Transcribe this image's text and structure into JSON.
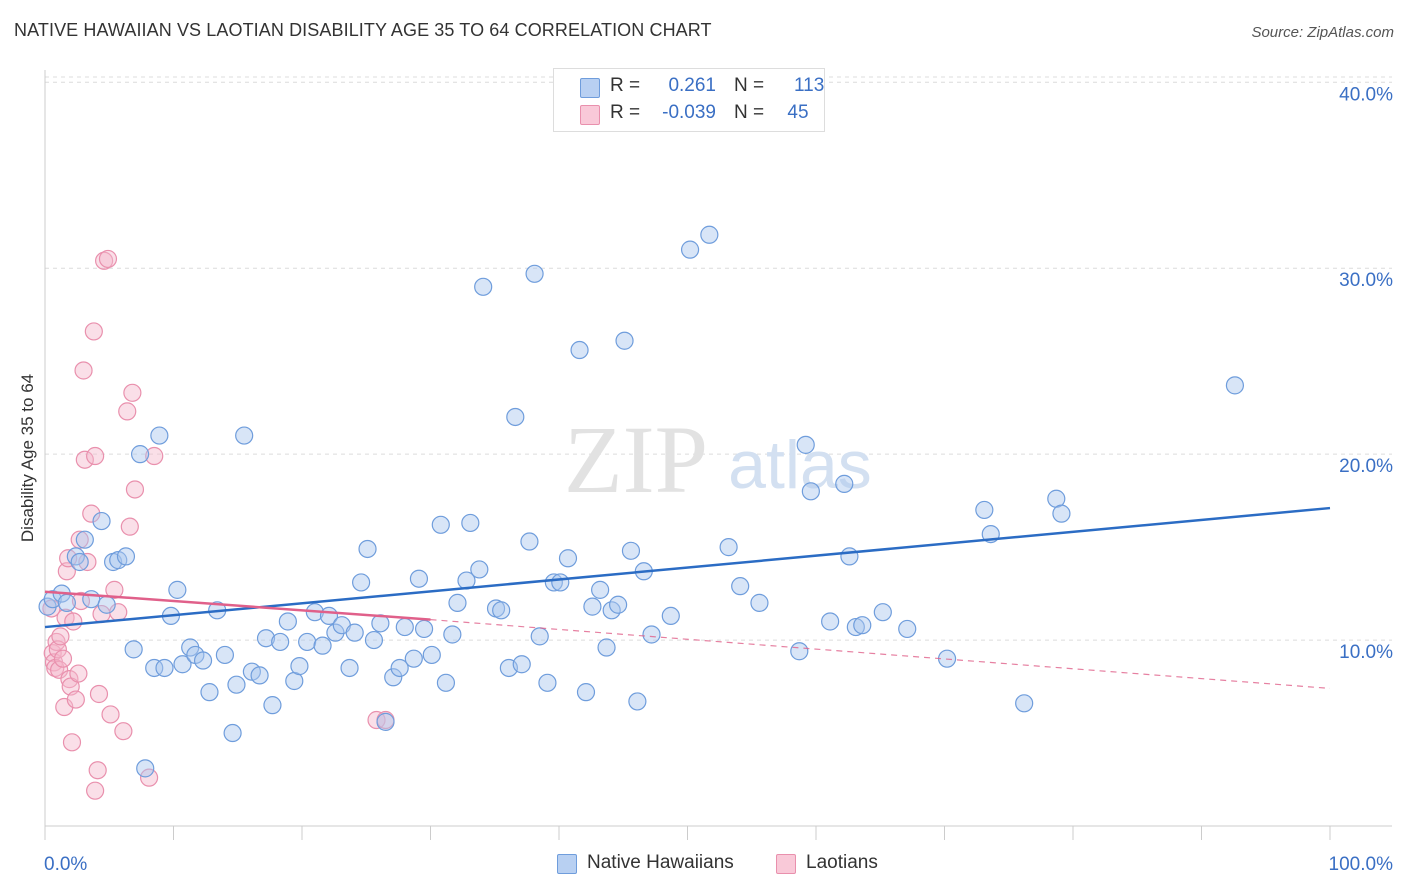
{
  "title": "NATIVE HAWAIIAN VS LAOTIAN DISABILITY AGE 35 TO 64 CORRELATION CHART",
  "source": "Source: ZipAtlas.com",
  "watermark": {
    "zip": "ZIP",
    "atlas": "atlas"
  },
  "legend": {
    "r_label": "R =",
    "n_label": "N =",
    "rows": [
      {
        "r": "0.261",
        "n": "113"
      },
      {
        "r": "-0.039",
        "n": "45"
      }
    ]
  },
  "colors": {
    "blue_fill": "#a9c6ee",
    "blue_stroke": "#6f9ddc",
    "blue_line": "#2b6cc4",
    "pink_fill": "#f5b8cc",
    "pink_stroke": "#e990ad",
    "pink_line": "#e0608a",
    "axis_text": "#3a6fc4",
    "grid": "#dcdcdc"
  },
  "chart_data": {
    "type": "scatter",
    "title": "NATIVE HAWAIIAN VS LAOTIAN DISABILITY AGE 35 TO 64 CORRELATION CHART",
    "xlabel": "",
    "ylabel": "Disability Age 35 to 64",
    "xlim": [
      0,
      100
    ],
    "ylim": [
      0,
      40.5
    ],
    "x_tick_labels": [
      "0.0%",
      "100.0%"
    ],
    "y_ticks": [
      10,
      20,
      30,
      40
    ],
    "y_tick_labels": [
      "10.0%",
      "20.0%",
      "30.0%",
      "40.0%"
    ],
    "legend_position": "bottom",
    "series": [
      {
        "name": "Native Hawaiians",
        "r": 0.261,
        "n": 113,
        "trend": {
          "x": [
            0,
            100
          ],
          "y": [
            10.7,
            17.1
          ],
          "style": "solid"
        },
        "points": [
          [
            0.2,
            11.8
          ],
          [
            0.6,
            12.2
          ],
          [
            1.3,
            12.5
          ],
          [
            1.7,
            12.0
          ],
          [
            2.4,
            14.5
          ],
          [
            2.7,
            14.2
          ],
          [
            3.1,
            15.4
          ],
          [
            3.6,
            12.2
          ],
          [
            4.4,
            16.4
          ],
          [
            4.8,
            11.9
          ],
          [
            5.3,
            14.2
          ],
          [
            5.7,
            14.3
          ],
          [
            6.3,
            14.5
          ],
          [
            6.9,
            9.5
          ],
          [
            7.4,
            20.0
          ],
          [
            7.8,
            3.1
          ],
          [
            8.5,
            8.5
          ],
          [
            8.9,
            21.0
          ],
          [
            9.3,
            8.5
          ],
          [
            9.8,
            11.3
          ],
          [
            10.3,
            12.7
          ],
          [
            10.7,
            8.7
          ],
          [
            11.3,
            9.6
          ],
          [
            11.7,
            9.2
          ],
          [
            12.3,
            8.9
          ],
          [
            12.8,
            7.2
          ],
          [
            13.4,
            11.6
          ],
          [
            14.0,
            9.2
          ],
          [
            14.6,
            5.0
          ],
          [
            14.9,
            7.6
          ],
          [
            15.5,
            21.0
          ],
          [
            16.1,
            8.3
          ],
          [
            16.7,
            8.1
          ],
          [
            17.2,
            10.1
          ],
          [
            17.7,
            6.5
          ],
          [
            18.3,
            9.9
          ],
          [
            18.9,
            11.0
          ],
          [
            19.4,
            7.8
          ],
          [
            19.8,
            8.6
          ],
          [
            20.4,
            9.9
          ],
          [
            21.0,
            11.5
          ],
          [
            21.6,
            9.7
          ],
          [
            22.1,
            11.3
          ],
          [
            22.6,
            10.4
          ],
          [
            23.1,
            10.8
          ],
          [
            23.7,
            8.5
          ],
          [
            24.1,
            10.4
          ],
          [
            24.6,
            13.1
          ],
          [
            25.1,
            14.9
          ],
          [
            25.6,
            10.0
          ],
          [
            26.1,
            10.9
          ],
          [
            26.5,
            5.6
          ],
          [
            27.1,
            8.0
          ],
          [
            27.6,
            8.5
          ],
          [
            28.0,
            10.7
          ],
          [
            28.7,
            9.0
          ],
          [
            29.1,
            13.3
          ],
          [
            29.5,
            10.6
          ],
          [
            30.1,
            9.2
          ],
          [
            30.8,
            16.2
          ],
          [
            31.2,
            7.7
          ],
          [
            31.7,
            10.3
          ],
          [
            32.1,
            12.0
          ],
          [
            32.8,
            13.2
          ],
          [
            33.1,
            16.3
          ],
          [
            33.8,
            13.8
          ],
          [
            34.1,
            29.0
          ],
          [
            35.1,
            11.7
          ],
          [
            35.5,
            11.6
          ],
          [
            36.1,
            8.5
          ],
          [
            36.6,
            22.0
          ],
          [
            37.1,
            8.7
          ],
          [
            37.7,
            15.3
          ],
          [
            38.5,
            10.2
          ],
          [
            38.1,
            29.7
          ],
          [
            39.1,
            7.7
          ],
          [
            39.6,
            13.1
          ],
          [
            40.1,
            13.1
          ],
          [
            40.7,
            14.4
          ],
          [
            41.6,
            25.6
          ],
          [
            42.1,
            7.2
          ],
          [
            42.6,
            11.8
          ],
          [
            43.2,
            12.7
          ],
          [
            43.7,
            9.6
          ],
          [
            44.1,
            11.6
          ],
          [
            44.6,
            11.9
          ],
          [
            45.1,
            26.1
          ],
          [
            45.6,
            14.8
          ],
          [
            46.1,
            6.7
          ],
          [
            46.6,
            13.7
          ],
          [
            47.2,
            10.3
          ],
          [
            48.7,
            11.3
          ],
          [
            50.2,
            31.0
          ],
          [
            51.7,
            31.8
          ],
          [
            53.2,
            15.0
          ],
          [
            54.1,
            12.9
          ],
          [
            55.6,
            12.0
          ],
          [
            58.7,
            9.4
          ],
          [
            59.2,
            20.5
          ],
          [
            59.6,
            18.0
          ],
          [
            61.1,
            11.0
          ],
          [
            62.2,
            18.4
          ],
          [
            62.6,
            14.5
          ],
          [
            63.1,
            10.7
          ],
          [
            63.6,
            10.8
          ],
          [
            65.2,
            11.5
          ],
          [
            67.1,
            10.6
          ],
          [
            70.2,
            9.0
          ],
          [
            73.1,
            17.0
          ],
          [
            73.6,
            15.7
          ],
          [
            76.2,
            6.6
          ],
          [
            78.7,
            17.6
          ],
          [
            79.1,
            16.8
          ],
          [
            92.6,
            23.7
          ]
        ]
      },
      {
        "name": "Laotians",
        "r": -0.039,
        "n": 45,
        "trend": {
          "x": [
            0,
            30
          ],
          "y": [
            12.6,
            11.1
          ],
          "style": "solid",
          "extension": {
            "x": [
              30,
              100
            ],
            "y": [
              11.1,
              7.4
            ],
            "style": "dashed"
          }
        },
        "points": [
          [
            0.5,
            11.7
          ],
          [
            0.6,
            9.3
          ],
          [
            0.7,
            8.8
          ],
          [
            0.8,
            8.5
          ],
          [
            0.9,
            9.9
          ],
          [
            1.0,
            9.5
          ],
          [
            1.1,
            8.4
          ],
          [
            1.2,
            10.2
          ],
          [
            1.4,
            9.0
          ],
          [
            1.5,
            6.4
          ],
          [
            1.6,
            11.2
          ],
          [
            1.7,
            13.7
          ],
          [
            1.8,
            14.4
          ],
          [
            1.9,
            7.9
          ],
          [
            2.0,
            7.5
          ],
          [
            2.1,
            4.5
          ],
          [
            2.2,
            11.0
          ],
          [
            2.4,
            6.8
          ],
          [
            2.6,
            8.2
          ],
          [
            2.7,
            15.4
          ],
          [
            2.8,
            12.1
          ],
          [
            3.0,
            24.5
          ],
          [
            3.1,
            19.7
          ],
          [
            3.3,
            14.2
          ],
          [
            3.6,
            16.8
          ],
          [
            3.8,
            26.6
          ],
          [
            3.9,
            19.9
          ],
          [
            4.1,
            3.0
          ],
          [
            4.2,
            7.1
          ],
          [
            4.4,
            11.4
          ],
          [
            4.6,
            30.4
          ],
          [
            4.9,
            30.5
          ],
          [
            5.1,
            6.0
          ],
          [
            5.4,
            12.7
          ],
          [
            5.7,
            11.5
          ],
          [
            6.1,
            5.1
          ],
          [
            6.4,
            22.3
          ],
          [
            6.6,
            16.1
          ],
          [
            6.8,
            23.3
          ],
          [
            7.0,
            18.1
          ],
          [
            8.1,
            2.6
          ],
          [
            8.5,
            19.9
          ],
          [
            25.8,
            5.7
          ],
          [
            26.5,
            5.7
          ],
          [
            3.9,
            1.9
          ]
        ]
      }
    ]
  }
}
